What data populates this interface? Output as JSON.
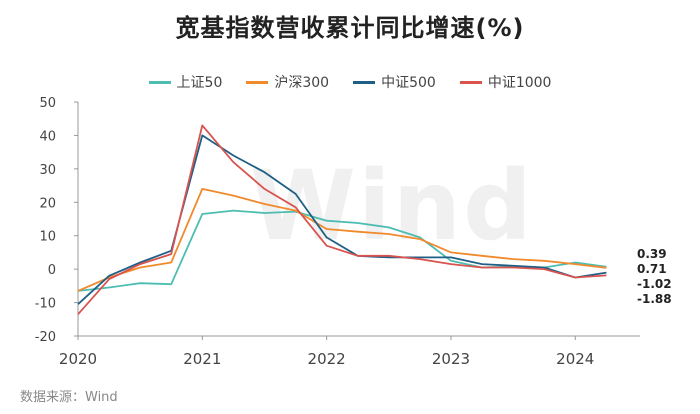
{
  "title": "宽基指数营收累计同比增速(%)",
  "source": "数据来源：Wind",
  "watermark": "Wind",
  "chart_data": {
    "type": "line",
    "ylim": [
      -20,
      50
    ],
    "yticks": [
      -20,
      -10,
      0,
      10,
      20,
      30,
      40,
      50
    ],
    "xlim": [
      2020,
      2024.4
    ],
    "xticks": [
      2020,
      2021,
      2022,
      2023,
      2024
    ],
    "grid": false,
    "legend_position": "top-center",
    "series": [
      {
        "name": "上证50",
        "color": "#4dbdb1",
        "x": [
          2020,
          2020.25,
          2020.5,
          2020.75,
          2021,
          2021.25,
          2021.5,
          2021.75,
          2022,
          2022.25,
          2022.5,
          2022.75,
          2023,
          2023.25,
          2023.5,
          2023.75,
          2024,
          2024.25
        ],
        "y": [
          -6.5,
          -5.5,
          -4.2,
          -4.5,
          16.5,
          17.5,
          16.8,
          17.2,
          14.5,
          13.8,
          12.5,
          9.5,
          2.5,
          0.5,
          0.8,
          0.5,
          2.0,
          0.71
        ]
      },
      {
        "name": "沪深300",
        "color": "#f08a2c",
        "x": [
          2020,
          2020.25,
          2020.5,
          2020.75,
          2021,
          2021.25,
          2021.5,
          2021.75,
          2022,
          2022.25,
          2022.5,
          2022.75,
          2023,
          2023.25,
          2023.5,
          2023.75,
          2024,
          2024.25
        ],
        "y": [
          -6.5,
          -2.5,
          0.5,
          2.0,
          24.0,
          22.0,
          19.5,
          17.5,
          12.0,
          11.2,
          10.5,
          9.0,
          5.0,
          4.0,
          3.0,
          2.5,
          1.5,
          0.39
        ]
      },
      {
        "name": "中证500",
        "color": "#1f5f85",
        "x": [
          2020,
          2020.25,
          2020.5,
          2020.75,
          2021,
          2021.25,
          2021.5,
          2021.75,
          2022,
          2022.25,
          2022.5,
          2022.75,
          2023,
          2023.25,
          2023.5,
          2023.75,
          2024,
          2024.25
        ],
        "y": [
          -10.5,
          -2.0,
          2.0,
          5.5,
          40.0,
          34.0,
          29.0,
          22.5,
          9.5,
          4.0,
          3.5,
          3.5,
          3.5,
          1.5,
          1.0,
          0.5,
          -2.5,
          -1.02
        ]
      },
      {
        "name": "中证1000",
        "color": "#d9534f",
        "x": [
          2020,
          2020.25,
          2020.5,
          2020.75,
          2021,
          2021.25,
          2021.5,
          2021.75,
          2022,
          2022.25,
          2022.5,
          2022.75,
          2023,
          2023.25,
          2023.5,
          2023.75,
          2024,
          2024.25
        ],
        "y": [
          -13.5,
          -3.0,
          1.5,
          4.5,
          43.0,
          32.0,
          24.0,
          18.5,
          7.0,
          4.0,
          4.0,
          3.0,
          1.5,
          0.5,
          0.5,
          0.0,
          -2.5,
          -1.88
        ]
      }
    ],
    "end_labels": [
      {
        "series": "沪深300",
        "text": "0.39"
      },
      {
        "series": "上证50",
        "text": "0.71"
      },
      {
        "series": "中证500",
        "text": "-1.02"
      },
      {
        "series": "中证1000",
        "text": "-1.88"
      }
    ]
  }
}
